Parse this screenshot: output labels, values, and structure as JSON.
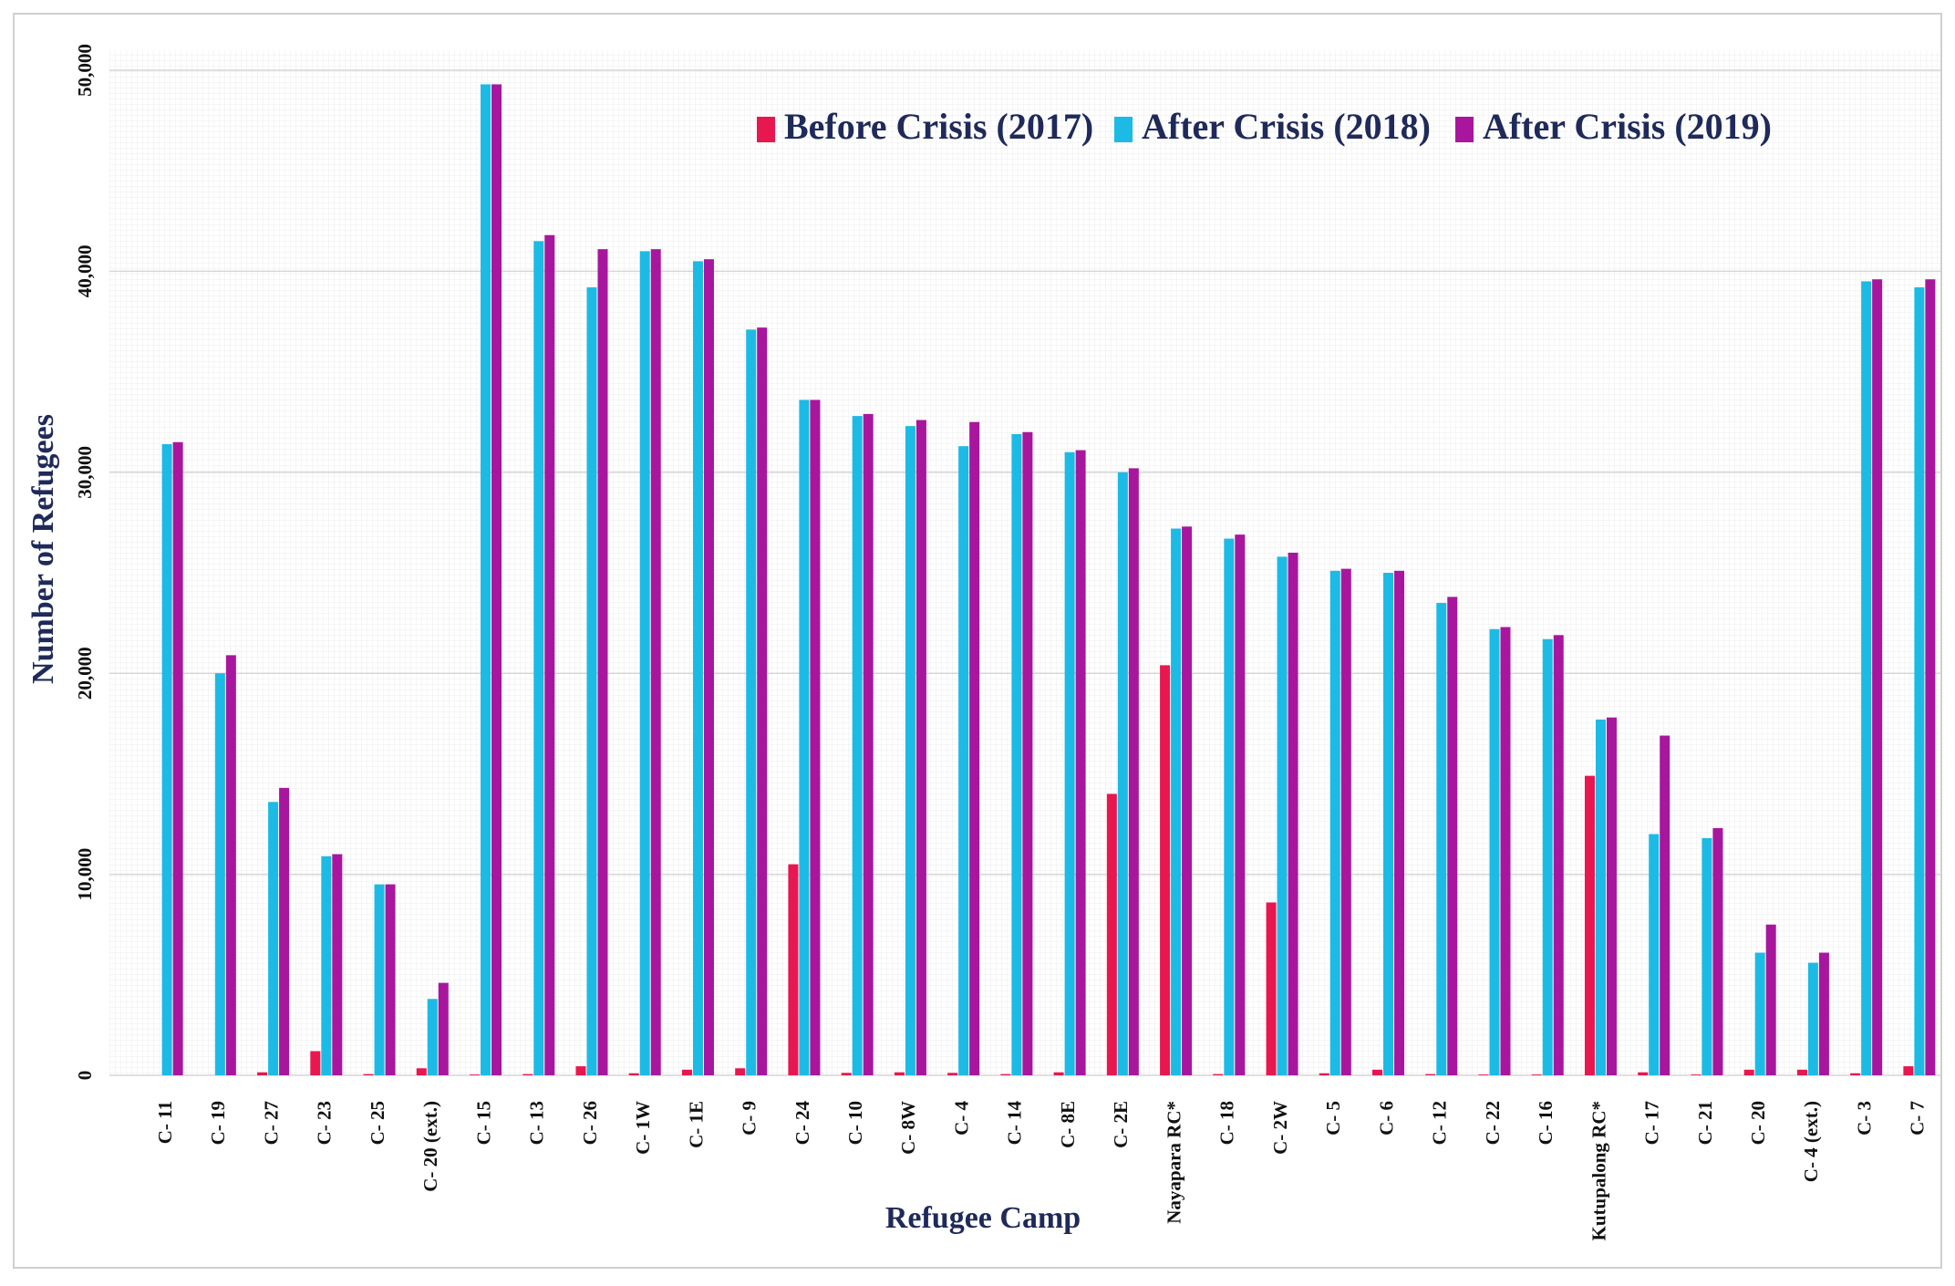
{
  "chart_data": {
    "type": "bar",
    "title": "",
    "xlabel": "Refugee Camp",
    "ylabel": "Number of Refugees",
    "ylim": [
      0,
      51000
    ],
    "yticks": [
      0,
      10000,
      20000,
      30000,
      40000,
      50000
    ],
    "ytick_labels": [
      "0",
      "10,000",
      "20,000",
      "30,000",
      "40,000",
      "50,000"
    ],
    "grid": true,
    "legend_position": "top-right",
    "categories": [
      "C- 11",
      "C- 19",
      "C- 27",
      "C- 23",
      "C- 25",
      "C- 20 (ext.)",
      "C- 15",
      "C- 13",
      "C- 26",
      "C- 1W",
      "C- 1E",
      "C- 9",
      "C- 24",
      "C- 10",
      "C- 8W",
      "C- 4",
      "C- 14",
      "C- 8E",
      "C- 2E",
      "Nayapara RC*",
      "C- 18",
      "C- 2W",
      "C- 5",
      "C- 6",
      "C- 12",
      "C- 22",
      "C- 16",
      "Kutupalong RC*",
      "C- 17",
      "C- 21",
      "C- 20",
      "C- 4 (ext.)",
      "C- 3",
      "C- 7"
    ],
    "series": [
      {
        "name": "Before Crisis (2017)",
        "color": "#e8174f",
        "values": [
          0,
          0,
          150,
          1200,
          60,
          350,
          40,
          60,
          450,
          100,
          280,
          350,
          10500,
          120,
          150,
          120,
          60,
          150,
          14000,
          20400,
          60,
          8600,
          100,
          280,
          60,
          40,
          40,
          14900,
          150,
          40,
          280,
          280,
          100,
          450
        ]
      },
      {
        "name": "After Crisis (2018)",
        "color": "#1cbbe5",
        "values": [
          31400,
          20000,
          13600,
          10900,
          9500,
          3800,
          49300,
          41500,
          39200,
          41000,
          40500,
          37100,
          33600,
          32800,
          32300,
          31300,
          31900,
          31000,
          30000,
          27200,
          26700,
          25800,
          25100,
          25000,
          23500,
          22200,
          21700,
          17700,
          12000,
          11800,
          6100,
          5600,
          39500,
          39200
        ]
      },
      {
        "name": "After Crisis (2019)",
        "color": "#a8169e",
        "values": [
          31500,
          20900,
          14300,
          11000,
          9500,
          4600,
          49300,
          41800,
          41100,
          41100,
          40600,
          37200,
          33600,
          32900,
          32600,
          32500,
          32000,
          31100,
          30200,
          27300,
          26900,
          26000,
          25200,
          25100,
          23800,
          22300,
          21900,
          17800,
          16900,
          12300,
          7500,
          6100,
          39600,
          39600
        ]
      }
    ]
  }
}
